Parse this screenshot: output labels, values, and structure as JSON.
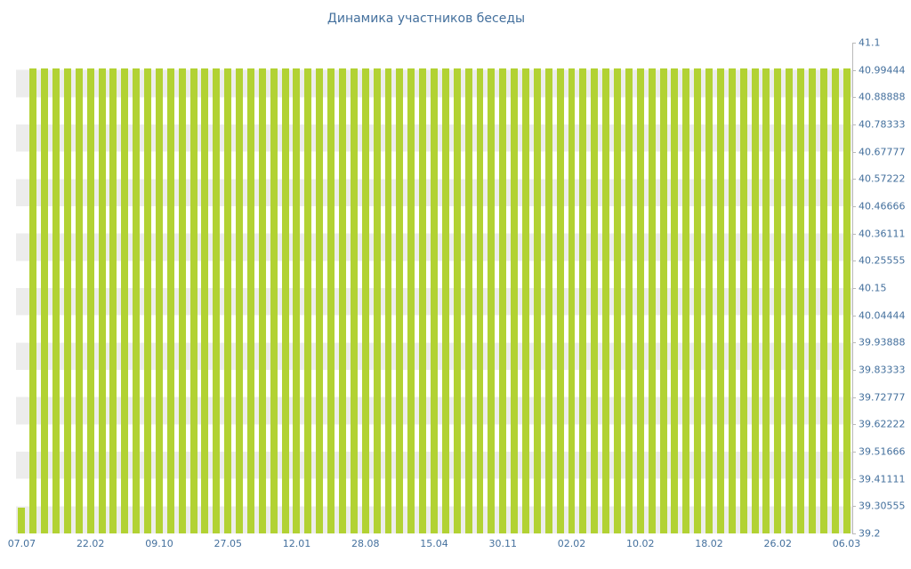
{
  "title": "Динамика участников беседы",
  "colors": {
    "bar": "#b2d233",
    "text": "#44709d",
    "axis_line": "#b9b9b9",
    "stripe": "#ececec",
    "background": "#ffffff"
  },
  "chart_data": {
    "type": "bar",
    "title": "Динамика участников беседы",
    "xlabel": "",
    "ylabel": "",
    "ylim": [
      39.2,
      41.1
    ],
    "grid": false,
    "legend": "none",
    "x_tick_labels": [
      "07.07",
      "22.02",
      "09.10",
      "27.05",
      "12.01",
      "28.08",
      "15.04",
      "30.11",
      "02.02",
      "10.02",
      "18.02",
      "26.02",
      "06.03"
    ],
    "x_tick_every": 6,
    "y_tick_labels": [
      "41.1",
      "40.99444",
      "40.88888",
      "40.78333",
      "40.67777",
      "40.57222",
      "40.46666",
      "40.36111",
      "40.25555",
      "40.15",
      "40.04444",
      "39.93888",
      "39.83333",
      "39.72777",
      "39.62222",
      "39.51666",
      "39.41111",
      "39.30555",
      "39.2"
    ],
    "values": [
      39.3,
      41,
      41,
      41,
      41,
      41,
      41,
      41,
      41,
      41,
      41,
      41,
      41,
      41,
      41,
      41,
      41,
      41,
      41,
      41,
      41,
      41,
      41,
      41,
      41,
      41,
      41,
      41,
      41,
      41,
      41,
      41,
      41,
      41,
      41,
      41,
      41,
      41,
      41,
      41,
      41,
      41,
      41,
      41,
      41,
      41,
      41,
      41,
      41,
      41,
      41,
      41,
      41,
      41,
      41,
      41,
      41,
      41,
      41,
      41,
      41,
      41,
      41,
      41,
      41,
      41,
      41,
      41,
      41,
      41,
      41,
      41,
      41
    ]
  }
}
